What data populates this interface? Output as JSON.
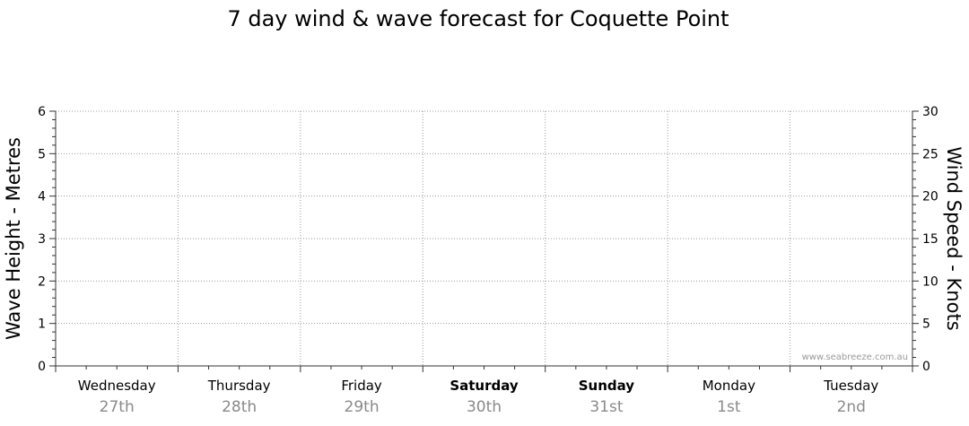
{
  "chart_data": {
    "type": "line",
    "title": "7 day wind & wave forecast for Coquette Point",
    "ylabel_left": "Wave Height - Metres",
    "ylabel_right": "Wind Speed - Knots",
    "ylim_left": [
      0,
      6
    ],
    "ylim_right": [
      0,
      30
    ],
    "yticks_left": [
      "0",
      "1",
      "2",
      "3",
      "4",
      "5",
      "6"
    ],
    "yticks_right": [
      "0",
      "5",
      "10",
      "15",
      "20",
      "25",
      "30"
    ],
    "days": [
      {
        "name": "Wednesday",
        "date": "27th",
        "weekend": false
      },
      {
        "name": "Thursday",
        "date": "28th",
        "weekend": false
      },
      {
        "name": "Friday",
        "date": "29th",
        "weekend": false
      },
      {
        "name": "Saturday",
        "date": "30th",
        "weekend": true
      },
      {
        "name": "Sunday",
        "date": "31st",
        "weekend": true
      },
      {
        "name": "Monday",
        "date": "1st",
        "weekend": false
      },
      {
        "name": "Tuesday",
        "date": "2nd",
        "weekend": false
      }
    ],
    "series": [],
    "grid": true,
    "watermark": "www.seabreeze.com.au"
  }
}
